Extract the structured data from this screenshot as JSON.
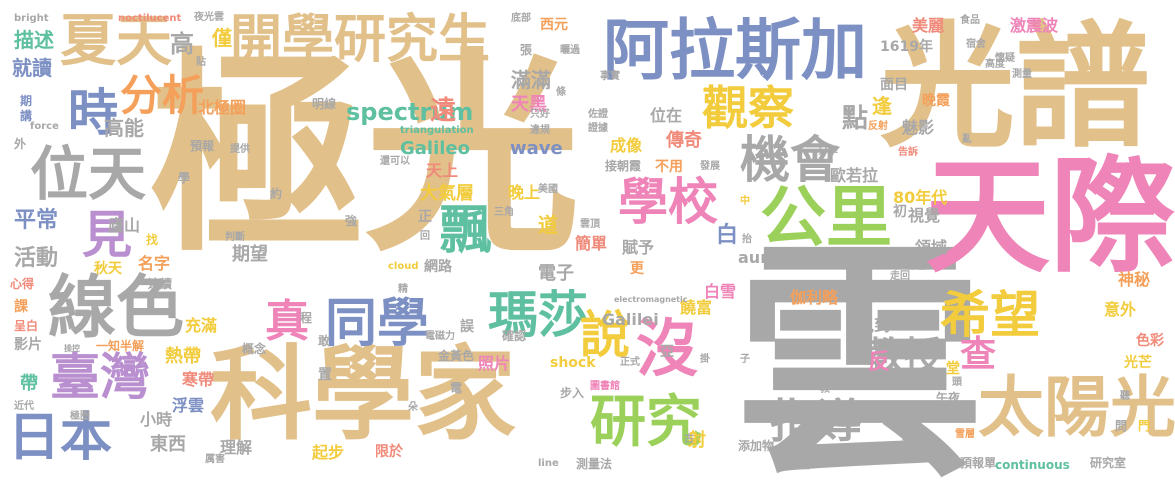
{
  "palette": {
    "tan": "#E2C08A",
    "grey": "#A8A8A8",
    "pink": "#EE84B8",
    "blue": "#7D90C4",
    "green": "#9BD05A",
    "teal": "#5EC0A0",
    "yellow": "#F2CC3C",
    "orange": "#F4A05A",
    "salmon": "#F08A7A",
    "purple": "#B98FD0",
    "lightyellow": "#F7E08A",
    "lightgreen": "#B8E0A0"
  },
  "words": [
    {
      "text": "極光"
    },
    {
      "text": "雲"
    },
    {
      "text": "光譜"
    },
    {
      "text": "天際"
    },
    {
      "text": "科學家"
    },
    {
      "text": "阿拉斯加"
    },
    {
      "text": "開學研究生"
    },
    {
      "text": "夏天"
    },
    {
      "text": "太陽光"
    },
    {
      "text": "線色"
    },
    {
      "text": "位天"
    },
    {
      "text": "公里"
    },
    {
      "text": "臺灣"
    },
    {
      "text": "日本"
    },
    {
      "text": "觀察"
    },
    {
      "text": "機會"
    },
    {
      "text": "學校"
    },
    {
      "text": "研究"
    },
    {
      "text": "指導"
    },
    {
      "text": "瑪莎"
    },
    {
      "text": "同學"
    },
    {
      "text": "希望"
    },
    {
      "text": "教授"
    },
    {
      "text": "說"
    },
    {
      "text": "沒"
    },
    {
      "text": "查"
    },
    {
      "text": "見"
    },
    {
      "text": "飄"
    },
    {
      "text": "分析"
    },
    {
      "text": "時"
    },
    {
      "text": "spectrum"
    },
    {
      "text": "真"
    },
    {
      "text": "高"
    },
    {
      "text": "描述"
    },
    {
      "text": "就讀"
    },
    {
      "text": "僅"
    },
    {
      "text": "北極圈"
    },
    {
      "text": "平常"
    },
    {
      "text": "活動"
    },
    {
      "text": "高能"
    },
    {
      "text": "遠"
    },
    {
      "text": "滿滿"
    },
    {
      "text": "天黑"
    },
    {
      "text": "Galileo"
    },
    {
      "text": "wave"
    },
    {
      "text": "位在"
    },
    {
      "text": "傳奇"
    },
    {
      "text": "成像"
    },
    {
      "text": "不用"
    },
    {
      "text": "接朝霞"
    },
    {
      "text": "點"
    },
    {
      "text": "逢"
    },
    {
      "text": "魅影"
    },
    {
      "text": "晚霞"
    },
    {
      "text": "面目"
    },
    {
      "text": "美麗"
    },
    {
      "text": "激震波"
    },
    {
      "text": "1619年"
    },
    {
      "text": "西元"
    },
    {
      "text": "大氣層"
    },
    {
      "text": "晚上"
    },
    {
      "text": "天上"
    },
    {
      "text": "歐若拉"
    },
    {
      "text": "80年代"
    },
    {
      "text": "視覺"
    },
    {
      "text": "領域"
    },
    {
      "text": "天邊"
    },
    {
      "text": "初"
    },
    {
      "text": "白"
    },
    {
      "text": "賦予"
    },
    {
      "text": "更"
    },
    {
      "text": "簡單"
    },
    {
      "text": "電子"
    },
    {
      "text": "道"
    },
    {
      "text": "期望"
    },
    {
      "text": "名字"
    },
    {
      "text": "秋天"
    },
    {
      "text": "網路"
    },
    {
      "text": "aurora"
    },
    {
      "text": "伽利略"
    },
    {
      "text": "形寬"
    },
    {
      "text": "神秘"
    },
    {
      "text": "意外"
    },
    {
      "text": "色彩"
    },
    {
      "text": "見到"
    },
    {
      "text": "光芒"
    },
    {
      "text": "Galilei"
    },
    {
      "text": "白雪"
    },
    {
      "text": "饒富"
    },
    {
      "text": "充滿"
    },
    {
      "text": "熱帶"
    },
    {
      "text": "寒帶"
    },
    {
      "text": "浮雲"
    },
    {
      "text": "小時"
    },
    {
      "text": "東西"
    },
    {
      "text": "理解"
    },
    {
      "text": "起步"
    },
    {
      "text": "限於"
    },
    {
      "text": "照片"
    },
    {
      "text": "shock"
    },
    {
      "text": "射"
    },
    {
      "text": "廬山"
    },
    {
      "text": "金黃色"
    },
    {
      "text": "確認"
    },
    {
      "text": "一知半解"
    },
    {
      "text": "亞"
    },
    {
      "text": "反"
    },
    {
      "text": "堂"
    },
    {
      "text": "帶"
    },
    {
      "text": "午夜"
    },
    {
      "text": "原子"
    },
    {
      "text": "科學"
    },
    {
      "text": "預報單"
    },
    {
      "text": "研究室"
    },
    {
      "text": "continuous"
    },
    {
      "text": "line"
    },
    {
      "text": "測量法"
    },
    {
      "text": "實在"
    },
    {
      "text": "添加物"
    },
    {
      "text": "步入"
    },
    {
      "text": "電磁力"
    },
    {
      "text": "電"
    },
    {
      "text": "置"
    },
    {
      "text": "誤"
    },
    {
      "text": "程"
    },
    {
      "text": "敢"
    },
    {
      "text": "概念"
    },
    {
      "text": "影片"
    },
    {
      "text": "課"
    },
    {
      "text": "呈白"
    },
    {
      "text": "心得"
    },
    {
      "text": "連續"
    },
    {
      "text": "找"
    },
    {
      "text": "判斷"
    },
    {
      "text": "強"
    },
    {
      "text": "約"
    },
    {
      "text": "學"
    },
    {
      "text": "提供"
    },
    {
      "text": "預報"
    },
    {
      "text": "外"
    },
    {
      "text": "期"
    },
    {
      "text": "講"
    },
    {
      "text": "force"
    },
    {
      "text": "明線"
    },
    {
      "text": "triangulation"
    },
    {
      "text": "違規"
    },
    {
      "text": "只好"
    },
    {
      "text": "條"
    },
    {
      "text": "佐證"
    },
    {
      "text": "證據"
    },
    {
      "text": "事實"
    },
    {
      "text": "發展"
    },
    {
      "text": "分享"
    },
    {
      "text": "告訴"
    },
    {
      "text": "反射"
    },
    {
      "text": "亂"
    },
    {
      "text": "宿舍"
    },
    {
      "text": "懷疑"
    },
    {
      "text": "食品"
    },
    {
      "text": "測量"
    },
    {
      "text": "高度"
    },
    {
      "text": "bright"
    },
    {
      "text": "noctilucent"
    },
    {
      "text": "夜光雲"
    },
    {
      "text": "底部"
    },
    {
      "text": "張"
    },
    {
      "text": "曬過"
    },
    {
      "text": "還可以"
    },
    {
      "text": "美國"
    },
    {
      "text": "三角"
    },
    {
      "text": "雲頂"
    },
    {
      "text": "cloud"
    },
    {
      "text": "精"
    },
    {
      "text": "electromagnetic"
    },
    {
      "text": "正式"
    },
    {
      "text": "圖書館"
    },
    {
      "text": "教"
    },
    {
      "text": "雪層"
    },
    {
      "text": "問"
    },
    {
      "text": "門"
    },
    {
      "text": "聽"
    },
    {
      "text": "頭"
    },
    {
      "text": "子"
    },
    {
      "text": "抬"
    },
    {
      "text": "中"
    },
    {
      "text": "掛"
    },
    {
      "text": "回"
    },
    {
      "text": "正"
    },
    {
      "text": "走回"
    },
    {
      "text": "理由"
    },
    {
      "text": "極圈"
    },
    {
      "text": "操控"
    },
    {
      "text": "近代"
    },
    {
      "text": "厲害"
    },
    {
      "text": "朵"
    },
    {
      "text": "古"
    },
    {
      "text": "貼"
    }
  ]
}
